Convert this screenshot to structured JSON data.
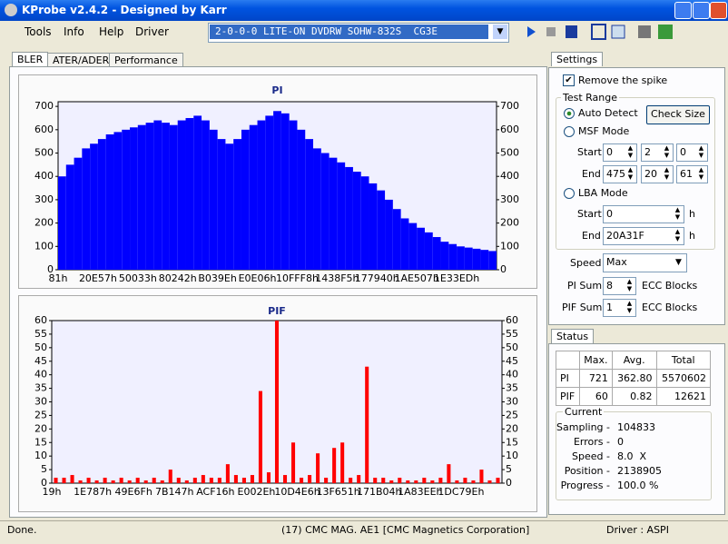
{
  "window": {
    "title": "KProbe v2.4.2 - Designed by Karr"
  },
  "menu": [
    "Tools",
    "Info",
    "Help",
    "Driver"
  ],
  "drive": "2-0-0-0 LITE-ON DVDRW SOHW-832S  CG3E",
  "tabs": [
    "BLER",
    "ATER/ADER",
    "Performance"
  ],
  "chart_data": [
    {
      "type": "bar",
      "title": "PI",
      "color": "#0000ff",
      "categories": [
        "81h",
        null,
        null,
        null,
        null,
        "20E57h",
        null,
        null,
        null,
        null,
        "50033h",
        null,
        null,
        null,
        null,
        "80242h",
        null,
        null,
        null,
        null,
        "B039Eh",
        null,
        null,
        null,
        null,
        "E0E06h",
        null,
        null,
        null,
        null,
        "10FFF8h",
        null,
        null,
        null,
        null,
        "1438F5h",
        null,
        null,
        null,
        null,
        "177940h",
        null,
        null,
        null,
        null,
        "1AE507h",
        null,
        null,
        null,
        null,
        "1E33EDh",
        null,
        null,
        null,
        null
      ],
      "values": [
        400,
        450,
        480,
        520,
        540,
        560,
        580,
        590,
        600,
        610,
        620,
        630,
        640,
        630,
        620,
        640,
        650,
        660,
        640,
        600,
        560,
        540,
        560,
        600,
        620,
        640,
        660,
        680,
        670,
        640,
        600,
        560,
        520,
        500,
        480,
        460,
        440,
        420,
        400,
        370,
        340,
        300,
        260,
        220,
        200,
        180,
        160,
        140,
        120,
        110,
        100,
        95,
        90,
        85,
        80
      ],
      "ylim": [
        0,
        720
      ],
      "yticks": [
        0,
        100,
        200,
        300,
        400,
        500,
        600,
        700
      ]
    },
    {
      "type": "bar",
      "title": "PIF",
      "color": "#ff0000",
      "categories": [
        "19h",
        null,
        null,
        null,
        null,
        "1E787h",
        null,
        null,
        null,
        null,
        "49E6Fh",
        null,
        null,
        null,
        null,
        "7B147h",
        null,
        null,
        null,
        null,
        "ACF16h",
        null,
        null,
        null,
        null,
        "E002Eh",
        null,
        null,
        null,
        null,
        "10D4E6h",
        null,
        null,
        null,
        null,
        "13F651h",
        null,
        null,
        null,
        null,
        "171B04h",
        null,
        null,
        null,
        null,
        "1A83EEh",
        null,
        null,
        null,
        null,
        "1DC79Eh",
        null,
        null,
        null,
        null
      ],
      "values": [
        2,
        2,
        3,
        1,
        2,
        1,
        2,
        1,
        2,
        1,
        2,
        1,
        2,
        1,
        5,
        2,
        1,
        2,
        3,
        2,
        2,
        7,
        3,
        2,
        3,
        34,
        4,
        60,
        3,
        15,
        2,
        3,
        11,
        2,
        13,
        15,
        2,
        3,
        43,
        2,
        2,
        1,
        2,
        1,
        1,
        2,
        1,
        2,
        7,
        1,
        2,
        1,
        5,
        1,
        2
      ],
      "ylim": [
        0,
        60
      ],
      "yticks": [
        0,
        5,
        10,
        15,
        20,
        25,
        30,
        35,
        40,
        45,
        50,
        55,
        60
      ]
    }
  ],
  "settings": {
    "title": "Settings",
    "remove_spike": "Remove the spike",
    "test_range": "Test Range",
    "auto_detect": "Auto Detect",
    "check_size": "Check Size",
    "msf_mode": "MSF Mode",
    "start": "Start",
    "end": "End",
    "msf_start": [
      "0",
      "2",
      "0"
    ],
    "msf_end": [
      "475",
      "20",
      "61"
    ],
    "lba_mode": "LBA Mode",
    "lba_start": "0",
    "lba_end": "20A31F",
    "unit": "h",
    "speed_label": "Speed",
    "speed": "Max",
    "pi_sum_label": "PI Sum",
    "pi_sum": "8",
    "pif_sum_label": "PIF Sum",
    "pif_sum": "1",
    "ecc": "ECC Blocks"
  },
  "status": {
    "title": "Status",
    "headers": [
      "Max.",
      "Avg.",
      "Total"
    ],
    "rows": [
      {
        "label": "PI",
        "cells": [
          "721",
          "362.80",
          "5570602"
        ]
      },
      {
        "label": "PIF",
        "cells": [
          "60",
          "0.82",
          "12621"
        ]
      }
    ],
    "current": "Current",
    "items": [
      {
        "label": "Sampling -",
        "value": "104833"
      },
      {
        "label": "Errors -",
        "value": "0"
      },
      {
        "label": "Speed -",
        "value": "8.0  X"
      },
      {
        "label": "Position -",
        "value": "2138905"
      },
      {
        "label": "Progress -",
        "value": "100.0 %"
      }
    ]
  },
  "statusbar": [
    "Done.",
    "(17) CMC MAG. AE1 [CMC Magnetics Corporation]",
    "Driver : ASPI"
  ]
}
